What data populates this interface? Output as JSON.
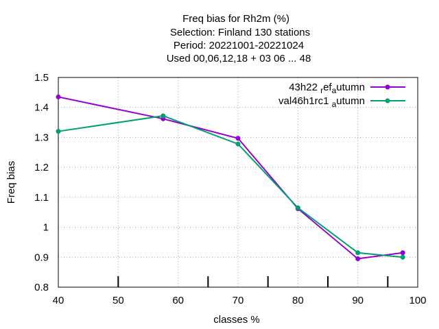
{
  "chart_data": {
    "type": "line",
    "title_lines": [
      "Freq bias  for Rh2m (%)",
      "Selection: Finland     130 stations",
      "Period: 20221001-20221024",
      "Used  00,06,12,18  + 03 06 ... 48"
    ],
    "xlabel": "classes %",
    "ylabel": "Freq bias",
    "xlim": [
      40,
      100
    ],
    "ylim": [
      0.8,
      1.5
    ],
    "x_ticks": [
      40,
      50,
      60,
      70,
      80,
      90,
      100
    ],
    "x_tick_labels": [
      "40",
      "50",
      "60",
      "70",
      "80",
      "90",
      "100"
    ],
    "y_ticks": [
      0.8,
      0.9,
      1.0,
      1.1,
      1.2,
      1.3,
      1.4,
      1.5
    ],
    "y_tick_labels": [
      "0.8",
      "0.9",
      "1",
      "1.1",
      "1.2",
      "1.3",
      "1.4",
      "1.5"
    ],
    "x_major_ticks": [
      50,
      65,
      75,
      85,
      95
    ],
    "grid": true,
    "legend_position": "top-right",
    "series": [
      {
        "name": "43h22 ref autumn",
        "legend_parts": [
          "43h22 ",
          "r",
          "ef",
          "a",
          "utumn"
        ],
        "color": "#9400d3",
        "x": [
          40,
          57.5,
          70,
          80,
          90,
          97.5
        ],
        "y": [
          1.435,
          1.362,
          1.297,
          1.062,
          0.895,
          0.915
        ]
      },
      {
        "name": "val46h1rc1 autumn",
        "legend_parts": [
          "val46h1rc1 ",
          "a",
          "utumn"
        ],
        "color": "#009e73",
        "x": [
          40,
          57.5,
          70,
          80,
          90,
          97.5
        ],
        "y": [
          1.32,
          1.372,
          1.278,
          1.065,
          0.915,
          0.9
        ]
      }
    ]
  }
}
